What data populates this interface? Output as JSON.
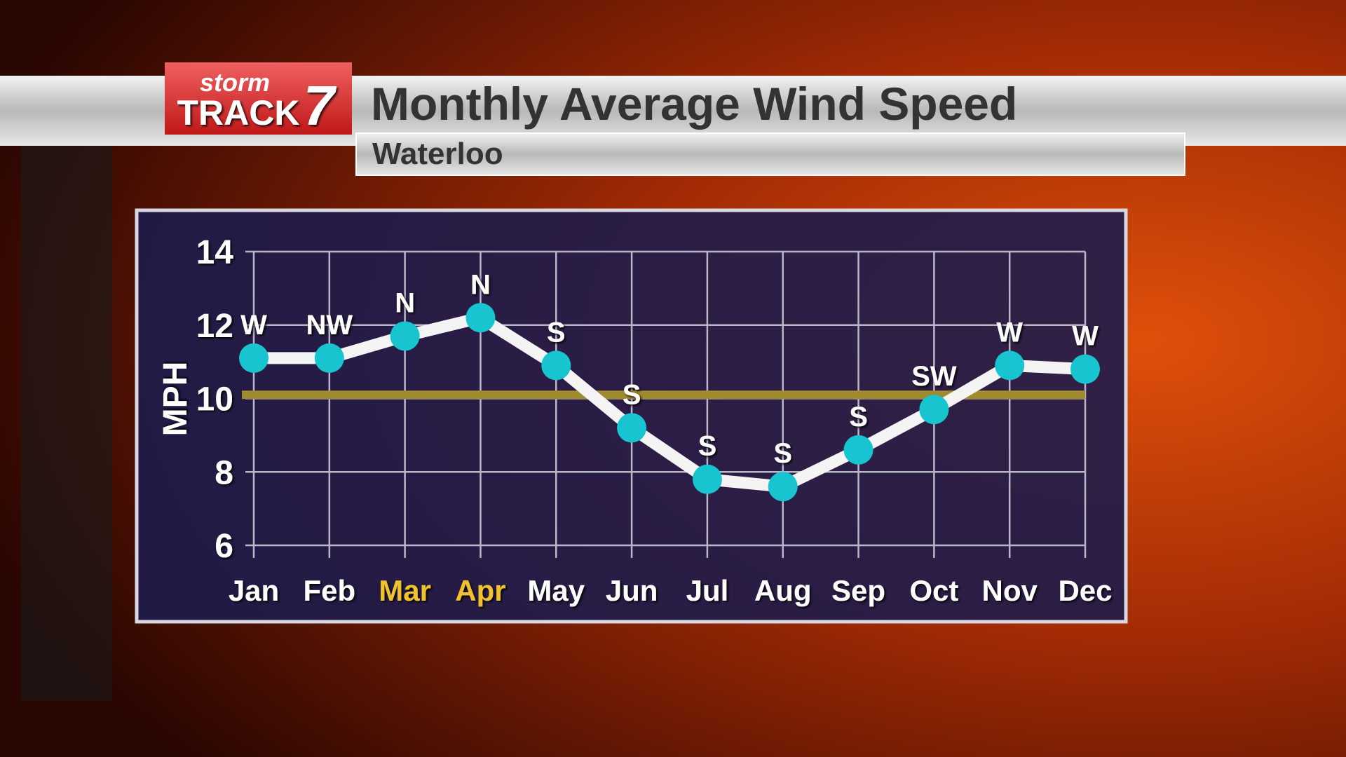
{
  "branding": {
    "line1": "storm",
    "line2": "TRACK",
    "number": "7"
  },
  "chart_data": {
    "type": "line",
    "title": "Monthly Average Wind Speed",
    "subtitle": "Waterloo",
    "y_label": "MPH",
    "categories": [
      "Jan",
      "Feb",
      "Mar",
      "Apr",
      "May",
      "Jun",
      "Jul",
      "Aug",
      "Sep",
      "Oct",
      "Nov",
      "Dec"
    ],
    "category_colors": [
      "#ffffff",
      "#ffffff",
      "#f2c22e",
      "#f2c22e",
      "#ffffff",
      "#ffffff",
      "#ffffff",
      "#ffffff",
      "#ffffff",
      "#ffffff",
      "#ffffff",
      "#ffffff"
    ],
    "values": [
      11.1,
      11.1,
      11.7,
      12.2,
      10.9,
      9.2,
      7.8,
      7.6,
      8.6,
      9.7,
      10.9,
      10.8
    ],
    "directions": [
      "W",
      "NW",
      "N",
      "N",
      "S",
      "S",
      "S",
      "S",
      "S",
      "SW",
      "W",
      "W"
    ],
    "line_color": "#f4f4f4",
    "marker_color": "#17c4cf",
    "reference_line": 10.1,
    "reference_color": "#a08a2e",
    "ylim": [
      6,
      14
    ],
    "yticks": [
      6,
      8,
      10,
      12,
      14
    ],
    "grid": true
  }
}
